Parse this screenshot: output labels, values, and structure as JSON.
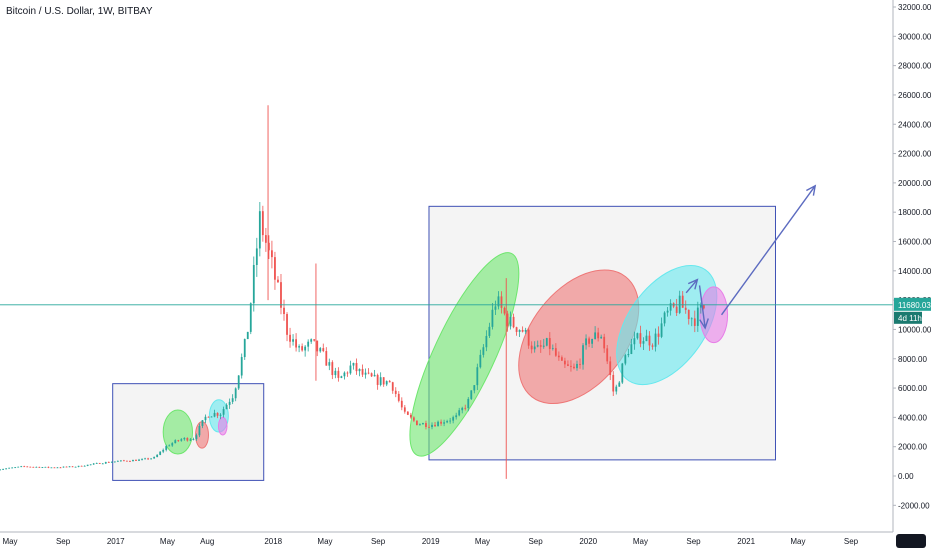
{
  "header": {
    "title": "Bitcoin / U.S. Dollar, 1W, BITBAY"
  },
  "colors": {
    "up": "#26a69a",
    "down": "#ef5350",
    "box": "#3f51b5",
    "last_price_line": "#26a69a",
    "arrow": "#5c6bc0",
    "ellipse_green": "#6ee66e",
    "ellipse_red": "#ee7777",
    "ellipse_cyan": "#66e8ee",
    "ellipse_pink": "#e87ee8"
  },
  "chart_data": {
    "type": "candlestick",
    "symbol": "Bitcoin / U.S. Dollar",
    "interval": "1W",
    "exchange": "BITBAY",
    "y_axis": {
      "ticks": [
        "32000.00",
        "30000.00",
        "28000.00",
        "26000.00",
        "24000.00",
        "22000.00",
        "20000.00",
        "18000.00",
        "16000.00",
        "14000.00",
        "12000.00",
        "10000.00",
        "8000.00",
        "6000.00",
        "4000.00",
        "2000.00",
        "0.00",
        "-2000.00"
      ],
      "ylim": [
        -3000,
        32500
      ]
    },
    "x_axis": {
      "ticks": [
        "May",
        "Sep",
        "2017",
        "May",
        "Aug",
        "2018",
        "May",
        "Sep",
        "2019",
        "May",
        "Sep",
        "2020",
        "May",
        "Sep",
        "2021",
        "May",
        "Sep"
      ],
      "tick_dates": [
        "2016-05",
        "2016-09",
        "2017-01",
        "2017-05",
        "2017-08",
        "2018-01",
        "2018-05",
        "2018-09",
        "2019-01",
        "2019-05",
        "2019-09",
        "2020-01",
        "2020-05",
        "2020-09",
        "2021-01",
        "2021-05",
        "2021-09"
      ]
    },
    "last_price": {
      "value": 11680.03,
      "label": "11680.03",
      "countdown": "4d 11h"
    },
    "price_path": [
      [
        "2016-04",
        440
      ],
      [
        "2016-06",
        650
      ],
      [
        "2016-08",
        580
      ],
      [
        "2016-10",
        640
      ],
      [
        "2016-12",
        900
      ],
      [
        "2017-01",
        1000
      ],
      [
        "2017-03",
        1100
      ],
      [
        "2017-04",
        1250
      ],
      [
        "2017-05",
        2100
      ],
      [
        "2017-06",
        2500
      ],
      [
        "2017-07",
        2600
      ],
      [
        "2017-08",
        4200
      ],
      [
        "2017-09",
        4300
      ],
      [
        "2017-10",
        5600
      ],
      [
        "2017-11",
        9500
      ],
      [
        "2017-12",
        17500
      ],
      [
        "2018-01",
        14000
      ],
      [
        "2018-02",
        10000
      ],
      [
        "2018-03",
        8500
      ],
      [
        "2018-04",
        9000
      ],
      [
        "2018-05",
        8000
      ],
      [
        "2018-06",
        6500
      ],
      [
        "2018-07",
        7500
      ],
      [
        "2018-08",
        6800
      ],
      [
        "2018-09",
        6500
      ],
      [
        "2018-10",
        6400
      ],
      [
        "2018-11",
        4200
      ],
      [
        "2018-12",
        3600
      ],
      [
        "2019-01",
        3500
      ],
      [
        "2019-03",
        4000
      ],
      [
        "2019-04",
        5200
      ],
      [
        "2019-05",
        8500
      ],
      [
        "2019-06",
        12000
      ],
      [
        "2019-07",
        10500
      ],
      [
        "2019-08",
        10000
      ],
      [
        "2019-09",
        8500
      ],
      [
        "2019-10",
        9000
      ],
      [
        "2019-11",
        7500
      ],
      [
        "2019-12",
        7200
      ],
      [
        "2020-01",
        9300
      ],
      [
        "2020-02",
        9700
      ],
      [
        "2020-03",
        5500
      ],
      [
        "2020-04",
        8600
      ],
      [
        "2020-05",
        9500
      ],
      [
        "2020-06",
        9200
      ],
      [
        "2020-07",
        11000
      ],
      [
        "2020-08",
        11700
      ],
      [
        "2020-09",
        10700
      ],
      [
        "2020-10",
        11680
      ]
    ],
    "wick_spikes": [
      {
        "date": "2017-12-20",
        "high": 25300,
        "low": 12000
      },
      {
        "date": "2018-04-10",
        "high": 14500,
        "low": 6500
      },
      {
        "date": "2019-06-25",
        "high": 13500,
        "low": -200
      }
    ],
    "annotations": {
      "boxes": [
        {
          "from": "2016-12-25",
          "to": "2017-12-10",
          "top": 6300,
          "bottom": -300
        },
        {
          "from": "2018-12-28",
          "to": "2021-03-10",
          "top": 18400,
          "bottom": 1100
        }
      ],
      "ellipses": [
        {
          "color": "green",
          "date": "2017-05-25",
          "value": 3000,
          "rx_days": 34,
          "ry_value": 1500
        },
        {
          "color": "red",
          "date": "2017-07-20",
          "value": 2800,
          "rx_days": 15,
          "ry_value": 900
        },
        {
          "color": "cyan",
          "date": "2017-08-28",
          "value": 4100,
          "rx_days": 22,
          "ry_value": 1100
        },
        {
          "color": "pink",
          "date": "2017-09-06",
          "value": 3400,
          "rx_days": 10,
          "ry_value": 600
        },
        {
          "color": "green",
          "date": "2019-03-20",
          "value": 8300,
          "rx_days": 70,
          "ry_value": 7600,
          "rotation": 25
        },
        {
          "color": "red",
          "date": "2019-12-10",
          "value": 9500,
          "rx_days": 110,
          "ry_value": 5200,
          "rotation": 38
        },
        {
          "color": "cyan",
          "date": "2020-07-01",
          "value": 10300,
          "rx_days": 90,
          "ry_value": 4600,
          "rotation": 35
        },
        {
          "color": "pink",
          "date": "2020-10-18",
          "value": 11000,
          "rx_days": 32,
          "ry_value": 1900
        }
      ],
      "arrows": [
        {
          "from": [
            "2020-08-15",
            12500
          ],
          "to": [
            "2020-09-10",
            13400
          ]
        },
        {
          "from": [
            "2020-09-15",
            13000
          ],
          "to": [
            "2020-09-28",
            10100
          ]
        },
        {
          "from": [
            "2020-11-05",
            11000
          ],
          "to": [
            "2021-06-10",
            19800
          ]
        }
      ]
    }
  }
}
